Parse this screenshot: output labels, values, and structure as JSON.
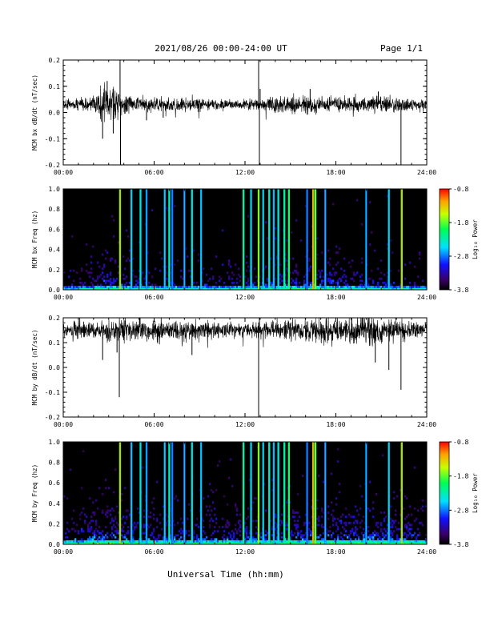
{
  "header": {
    "title": "2021/08/26  00:00-24:00 UT",
    "page": "Page 1/1"
  },
  "x_axis": {
    "label": "Universal Time (hh:mm)",
    "ticks": [
      "00:00",
      "06:00",
      "12:00",
      "18:00",
      "24:00"
    ],
    "tick_hours": [
      0,
      6,
      12,
      18,
      24
    ]
  },
  "colorbar": {
    "label": "Log₁₀ Power",
    "ticks": [
      "-0.8",
      "-1.8",
      "-2.8",
      "-3.8"
    ],
    "tick_values": [
      -0.8,
      -1.8,
      -2.8,
      -3.8
    ],
    "range": [
      -3.8,
      -0.8
    ]
  },
  "colors": {
    "background": "#000000",
    "trace": "#000000",
    "spectrogram_bg": "#000000"
  },
  "chart_data": [
    {
      "type": "line",
      "ylabel": "MCM bx dB/dt (nT/sec)",
      "ylim": [
        -0.2,
        0.2
      ],
      "yticks": [
        "0.2",
        "0.1",
        "0.0",
        "-0.1",
        "-0.2"
      ],
      "ytick_values": [
        0.2,
        0.1,
        0.0,
        -0.1,
        -0.2
      ],
      "xlim": [
        0,
        24
      ],
      "baseline": 0.03,
      "noise": [
        [
          0,
          0.012
        ],
        [
          2,
          0.02
        ],
        [
          2.5,
          0.045
        ],
        [
          3.5,
          0.035
        ],
        [
          4.5,
          0.022
        ],
        [
          8,
          0.015
        ],
        [
          12,
          0.012
        ],
        [
          13.5,
          0.017
        ],
        [
          16,
          0.025
        ],
        [
          18,
          0.02
        ],
        [
          20.5,
          0.022
        ],
        [
          22,
          0.02
        ],
        [
          24,
          0.015
        ]
      ],
      "spikes": [
        [
          2.6,
          -0.1
        ],
        [
          2.9,
          0.12
        ],
        [
          3.3,
          -0.08
        ],
        [
          3.75,
          0.2
        ],
        [
          3.78,
          -0.2
        ],
        [
          12.9,
          0.2
        ],
        [
          12.95,
          -0.2
        ],
        [
          22.3,
          -0.2
        ],
        [
          5.5,
          -0.03
        ],
        [
          6.6,
          -0.02
        ],
        [
          13.0,
          0.09
        ],
        [
          16.3,
          0.09
        ],
        [
          20.8,
          0.08
        ]
      ]
    },
    {
      "type": "heatmap",
      "ylabel": "MCM bx Freq (hz)",
      "ylim": [
        0,
        1.0
      ],
      "yticks": [
        "1.0",
        "0.8",
        "0.6",
        "0.4",
        "0.2",
        "0.0"
      ],
      "ytick_values": [
        1.0,
        0.8,
        0.6,
        0.4,
        0.2,
        0.0
      ],
      "xlim": [
        0,
        24
      ],
      "zlim": [
        -3.8,
        -0.8
      ],
      "activity": [
        [
          0,
          0.15
        ],
        [
          2,
          0.3
        ],
        [
          3,
          0.45
        ],
        [
          4,
          0.35
        ],
        [
          6,
          0.25
        ],
        [
          8,
          0.3
        ],
        [
          10,
          0.25
        ],
        [
          12,
          0.3
        ],
        [
          14,
          0.35
        ],
        [
          16,
          0.45
        ],
        [
          18,
          0.4
        ],
        [
          20,
          0.3
        ],
        [
          22,
          0.25
        ],
        [
          24,
          0.2
        ]
      ],
      "lines": [
        [
          3.75,
          -1.3
        ],
        [
          4.5,
          -2.4
        ],
        [
          5.1,
          -2.3
        ],
        [
          5.5,
          -2.6
        ],
        [
          6.7,
          -2.5
        ],
        [
          7.0,
          -2.2
        ],
        [
          7.2,
          -2.7
        ],
        [
          8.0,
          -2.6
        ],
        [
          8.5,
          -2.3
        ],
        [
          9.1,
          -2.5
        ],
        [
          11.9,
          -2.1
        ],
        [
          12.4,
          -2.4
        ],
        [
          12.9,
          -1.5
        ],
        [
          13.2,
          -2.4
        ],
        [
          13.6,
          -2.2
        ],
        [
          13.9,
          -2.5
        ],
        [
          14.2,
          -2.3
        ],
        [
          14.6,
          -2.1
        ],
        [
          14.9,
          -1.9
        ],
        [
          16.1,
          -2.7
        ],
        [
          16.5,
          -1.1
        ],
        [
          16.65,
          -1.6
        ],
        [
          17.3,
          -2.6
        ],
        [
          20.0,
          -2.6
        ],
        [
          21.5,
          -2.4
        ],
        [
          22.35,
          -1.3
        ]
      ]
    },
    {
      "type": "line",
      "ylabel": "MCM by dB/dt (nT/sec)",
      "ylim": [
        -0.2,
        0.2
      ],
      "yticks": [
        "0.2",
        "0.1",
        "0.0",
        "-0.1",
        "-0.2"
      ],
      "ytick_values": [
        0.2,
        0.1,
        0.0,
        -0.1,
        -0.2
      ],
      "xlim": [
        0,
        24
      ],
      "baseline": 0.15,
      "noise": [
        [
          0,
          0.02
        ],
        [
          1.5,
          0.025
        ],
        [
          2.5,
          0.035
        ],
        [
          4,
          0.03
        ],
        [
          6,
          0.03
        ],
        [
          9,
          0.025
        ],
        [
          12,
          0.02
        ],
        [
          14,
          0.025
        ],
        [
          16,
          0.03
        ],
        [
          18,
          0.035
        ],
        [
          20,
          0.04
        ],
        [
          22,
          0.03
        ],
        [
          24,
          0.02
        ]
      ],
      "spikes": [
        [
          2.6,
          0.03
        ],
        [
          3.7,
          -0.12
        ],
        [
          3.55,
          0.06
        ],
        [
          8.5,
          0.05
        ],
        [
          12.9,
          -0.2
        ],
        [
          12.95,
          0.2
        ],
        [
          20.6,
          0.02
        ],
        [
          21.5,
          -0.01
        ],
        [
          22.3,
          -0.09
        ]
      ]
    },
    {
      "type": "heatmap",
      "ylabel": "MCM by Freq (hz)",
      "ylim": [
        0,
        1.0
      ],
      "yticks": [
        "1.0",
        "0.8",
        "0.6",
        "0.4",
        "0.2",
        "0.0"
      ],
      "ytick_values": [
        1.0,
        0.8,
        0.6,
        0.4,
        0.2,
        0.0
      ],
      "xlim": [
        0,
        24
      ],
      "zlim": [
        -3.8,
        -0.8
      ],
      "activity": [
        [
          0,
          0.35
        ],
        [
          2,
          0.5
        ],
        [
          3,
          0.55
        ],
        [
          4,
          0.5
        ],
        [
          6,
          0.45
        ],
        [
          8,
          0.45
        ],
        [
          10,
          0.45
        ],
        [
          12,
          0.45
        ],
        [
          14,
          0.5
        ],
        [
          16,
          0.5
        ],
        [
          18,
          0.5
        ],
        [
          20,
          0.55
        ],
        [
          22,
          0.5
        ],
        [
          24,
          0.4
        ]
      ],
      "lines": [
        [
          3.75,
          -1.3
        ],
        [
          4.5,
          -2.5
        ],
        [
          5.1,
          -2.3
        ],
        [
          5.5,
          -2.6
        ],
        [
          6.7,
          -2.5
        ],
        [
          7.0,
          -2.2
        ],
        [
          7.2,
          -2.7
        ],
        [
          8.0,
          -2.6
        ],
        [
          8.5,
          -2.3
        ],
        [
          9.1,
          -2.5
        ],
        [
          11.9,
          -2.1
        ],
        [
          12.4,
          -2.4
        ],
        [
          12.9,
          -1.5
        ],
        [
          13.2,
          -2.4
        ],
        [
          13.6,
          -2.2
        ],
        [
          13.9,
          -2.5
        ],
        [
          14.2,
          -2.3
        ],
        [
          14.6,
          -2.1
        ],
        [
          14.9,
          -1.9
        ],
        [
          16.1,
          -2.7
        ],
        [
          16.5,
          -1.1
        ],
        [
          16.65,
          -1.6
        ],
        [
          17.3,
          -2.6
        ],
        [
          20.0,
          -2.6
        ],
        [
          21.5,
          -2.4
        ],
        [
          22.35,
          -1.3
        ]
      ]
    }
  ]
}
